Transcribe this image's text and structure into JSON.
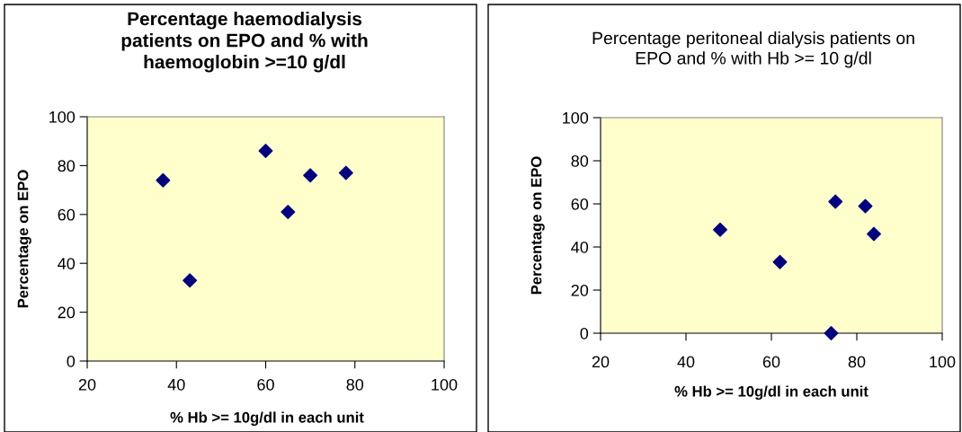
{
  "chart_data": [
    {
      "type": "scatter",
      "title": "Percentage haemodialysis patients on EPO and % with haemoglobin >=10 g/dl",
      "xlabel": "% Hb >= 10g/dl in each unit",
      "ylabel": "Percentage on EPO",
      "x": [
        37,
        43,
        60,
        65,
        70,
        78
      ],
      "series": [
        {
          "color": "#000080",
          "values": [
            74,
            33,
            86,
            61,
            76,
            77
          ]
        }
      ],
      "xlim": [
        20,
        100
      ],
      "xticks": [
        20,
        40,
        60,
        80,
        100
      ],
      "ylim": [
        0,
        100
      ],
      "yticks": [
        0,
        20,
        40,
        60,
        80,
        100
      ],
      "marker": "diamond",
      "grid": false,
      "legend": false
    },
    {
      "type": "scatter",
      "title": "Percentage peritoneal dialysis patients on EPO and % with Hb >= 10 g/dl",
      "xlabel": "% Hb >= 10g/dl in each unit",
      "ylabel": "Percentage on EPO",
      "x": [
        48,
        62,
        74,
        75,
        82,
        84
      ],
      "series": [
        {
          "color": "#000080",
          "values": [
            48,
            33,
            0,
            61,
            59,
            46
          ]
        }
      ],
      "xlim": [
        20,
        100
      ],
      "xticks": [
        20,
        40,
        60,
        80,
        100
      ],
      "ylim": [
        0,
        100
      ],
      "yticks": [
        0,
        20,
        40,
        60,
        80,
        100
      ],
      "marker": "diamond",
      "grid": false,
      "legend": false
    }
  ]
}
